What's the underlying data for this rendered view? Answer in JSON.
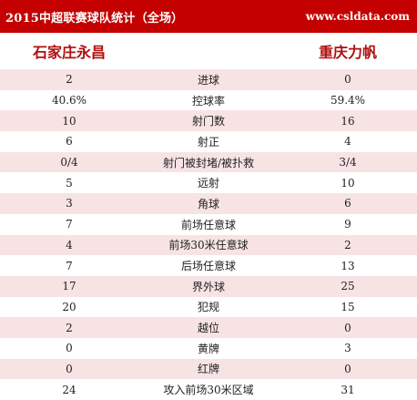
{
  "header": {
    "title": "2015中超联赛球队统计（全场）",
    "site": "www.csldata.com"
  },
  "teams": {
    "home": "石家庄永昌",
    "away": "重庆力帆"
  },
  "stats": [
    {
      "label": "进球",
      "home": "2",
      "away": "0"
    },
    {
      "label": "控球率",
      "home": "40.6%",
      "away": "59.4%"
    },
    {
      "label": "射门数",
      "home": "10",
      "away": "16"
    },
    {
      "label": "射正",
      "home": "6",
      "away": "4"
    },
    {
      "label": "射门被封堵/被扑救",
      "home": "0/4",
      "away": "3/4"
    },
    {
      "label": "远射",
      "home": "5",
      "away": "10"
    },
    {
      "label": "角球",
      "home": "3",
      "away": "6"
    },
    {
      "label": "前场任意球",
      "home": "7",
      "away": "9"
    },
    {
      "label": "前场30米任意球",
      "home": "4",
      "away": "2"
    },
    {
      "label": "后场任意球",
      "home": "7",
      "away": "13"
    },
    {
      "label": "界外球",
      "home": "17",
      "away": "25"
    },
    {
      "label": "犯规",
      "home": "20",
      "away": "15"
    },
    {
      "label": "越位",
      "home": "2",
      "away": "0"
    },
    {
      "label": "黄牌",
      "home": "0",
      "away": "3"
    },
    {
      "label": "红牌",
      "home": "0",
      "away": "0"
    },
    {
      "label": "攻入前场30米区域",
      "home": "24",
      "away": "31"
    }
  ],
  "colors": {
    "banner": "#c40000",
    "team_text": "#b01010",
    "stripe": "#f7e3e3"
  }
}
